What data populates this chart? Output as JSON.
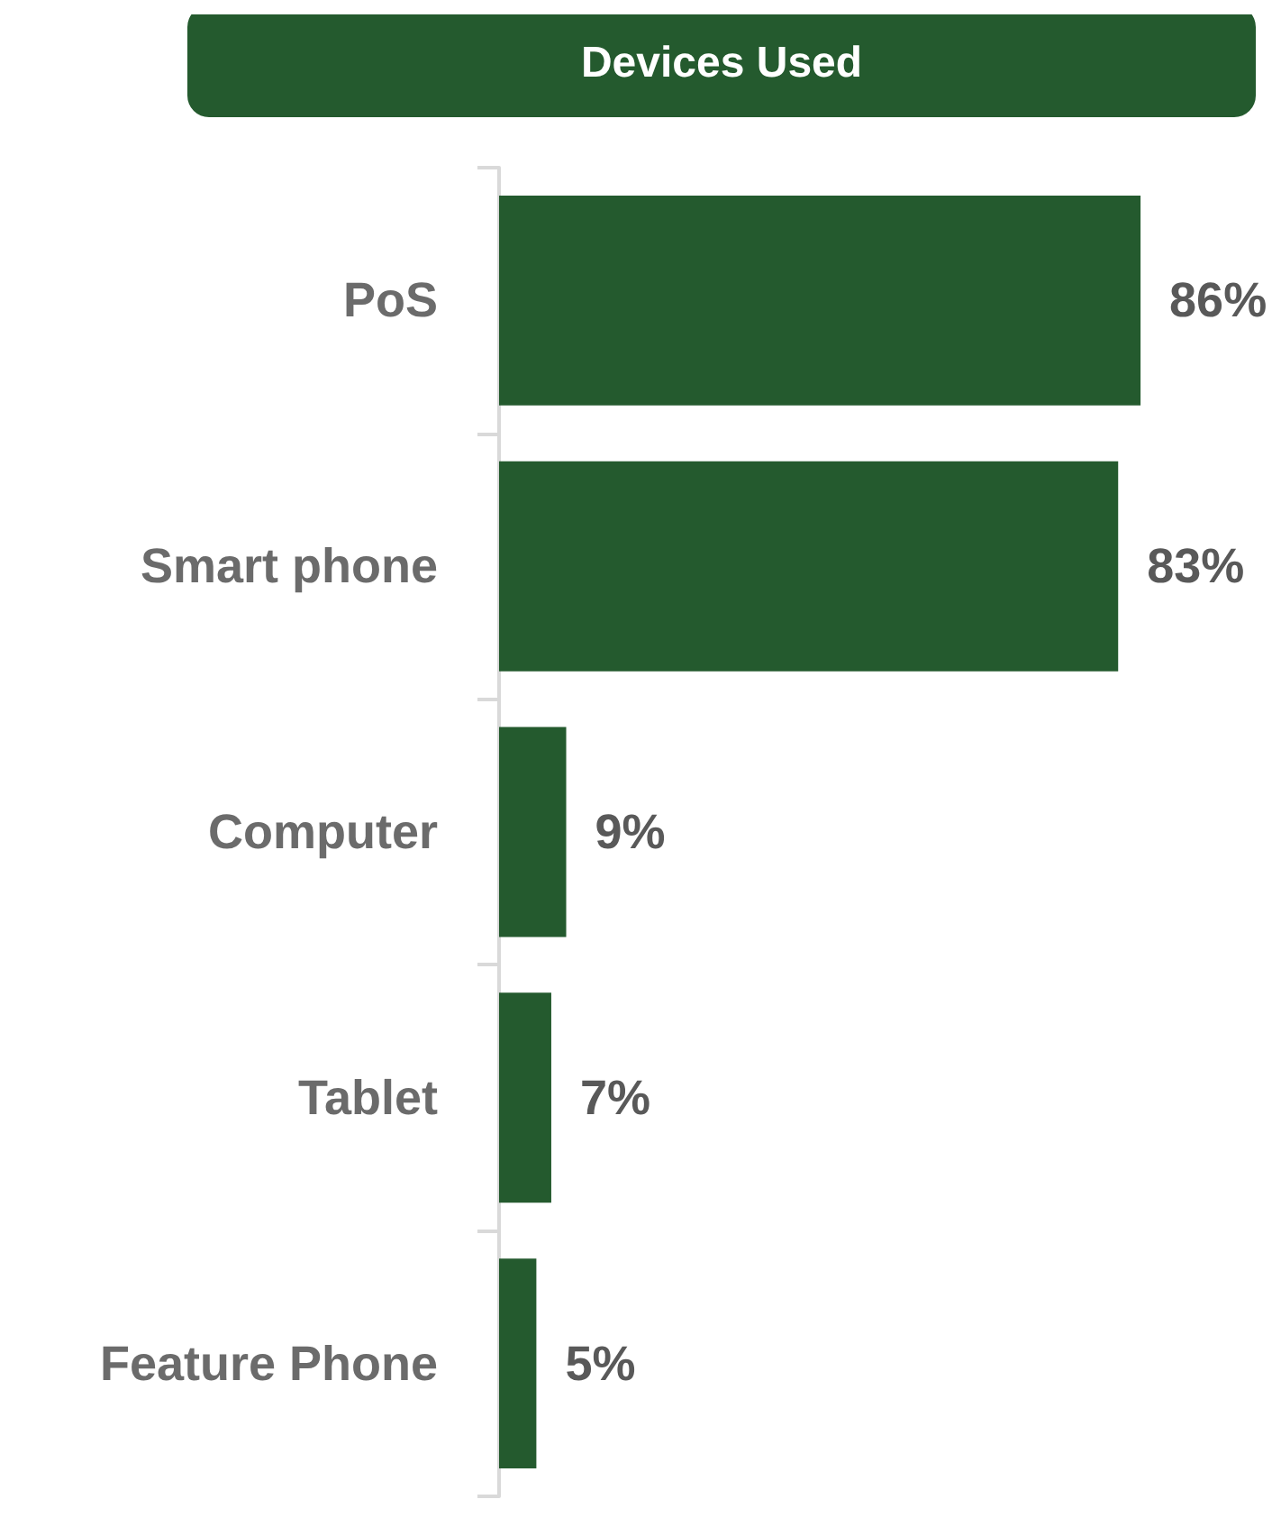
{
  "chart_data": {
    "type": "bar",
    "orientation": "horizontal",
    "title": "Devices Used",
    "categories": [
      "PoS",
      "Smart phone",
      "Computer",
      "Tablet",
      "Feature Phone"
    ],
    "values": [
      86,
      83,
      9,
      7,
      5
    ],
    "value_labels": [
      "86%",
      "83%",
      "9%",
      "7%",
      "5%"
    ],
    "color": "#245a2e",
    "tick_labels": "y"
  }
}
